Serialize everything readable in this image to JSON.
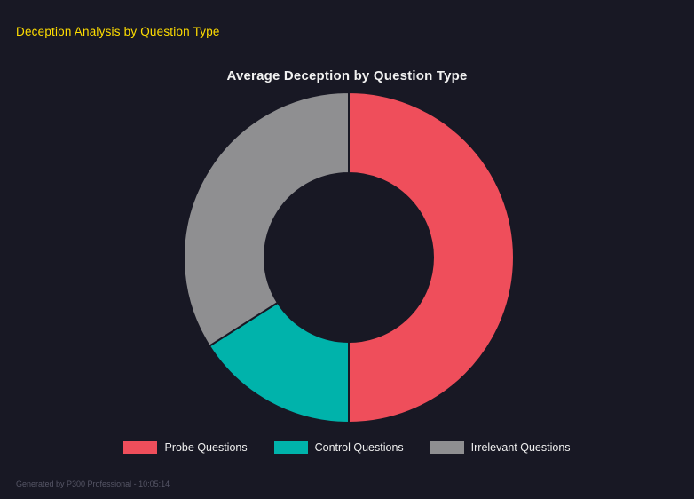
{
  "page": {
    "header": "Deception Analysis by Question Type",
    "footer": "Generated by P300 Professional - 10:05:14"
  },
  "chart_data": {
    "type": "pie",
    "variant": "donut",
    "title": "Average Deception by Question Type",
    "categories": [
      "Probe Questions",
      "Control Questions",
      "Irrelevant Questions"
    ],
    "values": [
      50,
      16,
      34
    ],
    "colors": [
      "#ef4e5b",
      "#00b3ab",
      "#8f8f91"
    ],
    "background": "#181824",
    "legend_position": "bottom",
    "start_angle_deg": 0,
    "inner_radius_ratio": 0.51
  }
}
